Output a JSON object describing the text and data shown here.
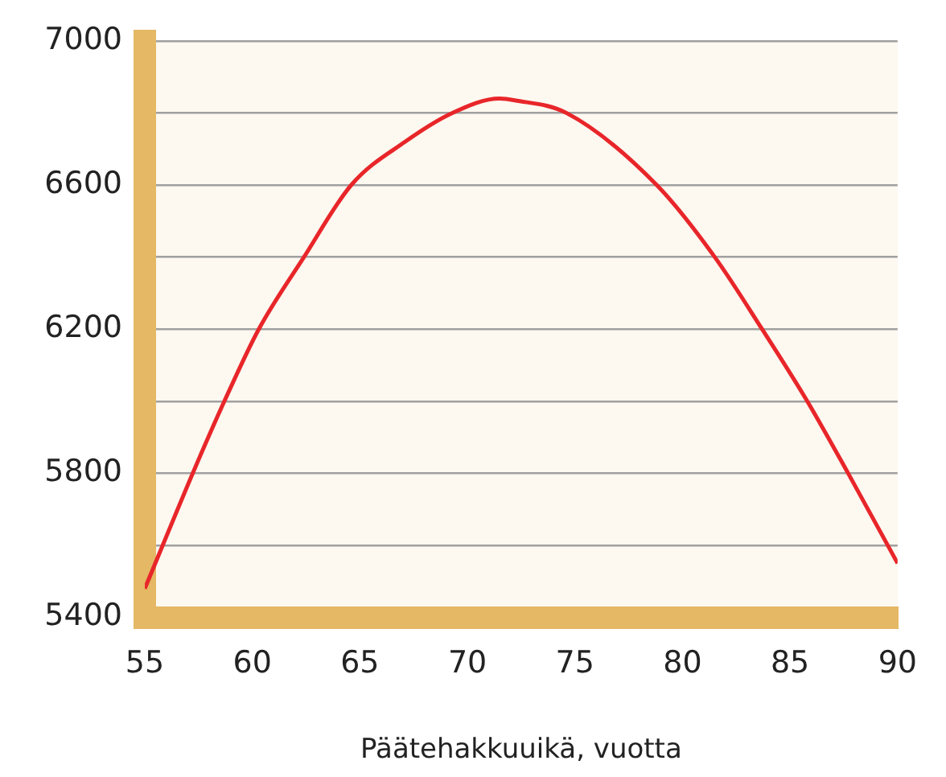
{
  "chart_data": {
    "type": "line",
    "xlabel": "Päätehakkuuikä, vuotta",
    "x": [
      55,
      57.3,
      58.7,
      60.3,
      62.4,
      64.6,
      67.1,
      69.3,
      71.5,
      72.2,
      74.6,
      78.8,
      81.5,
      83.7,
      85.8,
      87.7,
      90
    ],
    "series": [
      {
        "color": "#e8262a",
        "values": [
          5480,
          5810,
          6000,
          6200,
          6400,
          6600,
          6720,
          6800,
          6840,
          6835,
          6800,
          6600,
          6400,
          6200,
          6000,
          5800,
          5550
        ]
      }
    ],
    "xlim": [
      55,
      90
    ],
    "xticks": [
      55,
      60,
      65,
      70,
      75,
      80,
      85,
      90
    ],
    "ylim": [
      5400,
      7000
    ],
    "yticks": [
      5400,
      {
        "value": 5600,
        "label": null
      },
      5800,
      {
        "value": 6000,
        "label": null
      },
      6200,
      {
        "value": 6400,
        "label": null
      },
      6600,
      {
        "value": 6800,
        "label": null
      },
      7000
    ],
    "grid": "y",
    "legend": false,
    "marker": "none",
    "line_style": "solid"
  }
}
